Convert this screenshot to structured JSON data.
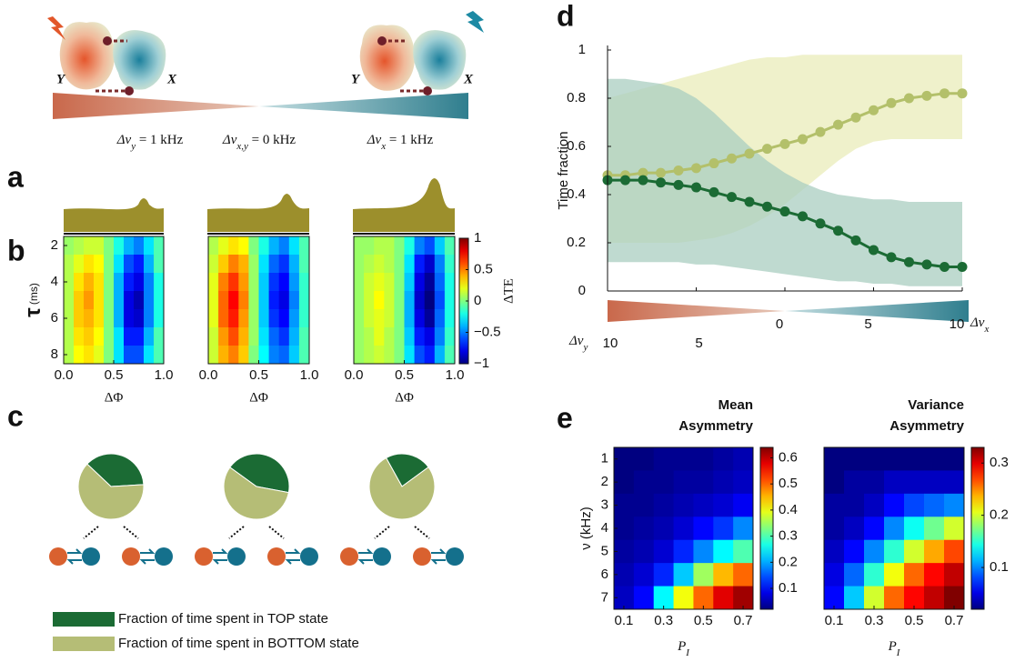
{
  "panel_labels": [
    "a",
    "b",
    "c",
    "d",
    "e"
  ],
  "schematic": {
    "y_label": "Y",
    "x_label": "X",
    "freq_labels": [
      {
        "text": "Δν",
        "sub": "y",
        "rest": " = 1 kHz"
      },
      {
        "text": "Δν",
        "sub": "x,y",
        "rest": " = 0 kHz"
      },
      {
        "text": "Δν",
        "sub": "x",
        "rest": " = 1 kHz"
      }
    ]
  },
  "legend": [
    {
      "name": "Fraction of time spent in TOP state",
      "color": "#1b6b34"
    },
    {
      "name": "Fraction of time spent in BOTTOM state",
      "color": "#b5bd76"
    }
  ],
  "chart_data": [
    {
      "type": "heatmap",
      "colormap": "jet",
      "xlabel": "ΔΦ",
      "ylabel": "τ",
      "ylabel_unit": "(ms)",
      "x": [
        0.05,
        0.15,
        0.25,
        0.35,
        0.45,
        0.55,
        0.65,
        0.75,
        0.85,
        0.95
      ],
      "y": [
        2,
        3,
        4,
        5,
        6,
        7,
        8
      ],
      "xlim": [
        0,
        1
      ],
      "ylim": [
        1.5,
        8.5
      ],
      "clim": [
        -1,
        1
      ],
      "xticks": [
        {
          "value": 0,
          "label": "0.0"
        },
        0.5,
        {
          "value": 1,
          "label": "1.0"
        }
      ],
      "yticks": [
        2,
        4,
        6,
        8
      ],
      "z": [
        [
          0.05,
          0.1,
          0.15,
          0.15,
          0.0,
          -0.2,
          -0.4,
          -0.5,
          -0.3,
          -0.1
        ],
        [
          0.1,
          0.2,
          0.3,
          0.25,
          0.0,
          -0.3,
          -0.6,
          -0.7,
          -0.4,
          -0.1
        ],
        [
          0.1,
          0.3,
          0.4,
          0.3,
          0.0,
          -0.4,
          -0.7,
          -0.8,
          -0.5,
          -0.2
        ],
        [
          0.1,
          0.35,
          0.45,
          0.3,
          0.0,
          -0.4,
          -0.8,
          -0.9,
          -0.5,
          -0.2
        ],
        [
          0.1,
          0.35,
          0.4,
          0.3,
          0.0,
          -0.4,
          -0.8,
          -0.85,
          -0.5,
          -0.2
        ],
        [
          0.1,
          0.3,
          0.35,
          0.25,
          0.0,
          -0.3,
          -0.7,
          -0.7,
          -0.4,
          -0.1
        ],
        [
          0.1,
          0.25,
          0.3,
          0.2,
          0.0,
          -0.3,
          -0.6,
          -0.6,
          -0.3,
          -0.1
        ]
      ]
    },
    {
      "type": "heatmap",
      "colormap": "jet",
      "xlabel": "ΔΦ",
      "x": [
        0.05,
        0.15,
        0.25,
        0.35,
        0.45,
        0.55,
        0.65,
        0.75,
        0.85,
        0.95
      ],
      "y": [
        2,
        3,
        4,
        5,
        6,
        7,
        8
      ],
      "xlim": [
        0,
        1
      ],
      "ylim": [
        1.5,
        8.5
      ],
      "clim": [
        -1,
        1
      ],
      "xticks": [
        {
          "value": 0,
          "label": "0.0"
        },
        0.5,
        {
          "value": 1,
          "label": "1.0"
        }
      ],
      "z": [
        [
          0.1,
          0.2,
          0.3,
          0.25,
          0.0,
          -0.2,
          -0.4,
          -0.5,
          -0.3,
          -0.1
        ],
        [
          0.15,
          0.35,
          0.5,
          0.4,
          0.05,
          -0.3,
          -0.55,
          -0.65,
          -0.4,
          -0.1
        ],
        [
          0.2,
          0.5,
          0.65,
          0.45,
          0.05,
          -0.35,
          -0.65,
          -0.75,
          -0.45,
          -0.15
        ],
        [
          0.2,
          0.55,
          0.75,
          0.5,
          0.05,
          -0.35,
          -0.7,
          -0.8,
          -0.5,
          -0.15
        ],
        [
          0.2,
          0.55,
          0.7,
          0.45,
          0.05,
          -0.35,
          -0.65,
          -0.75,
          -0.45,
          -0.15
        ],
        [
          0.15,
          0.45,
          0.6,
          0.4,
          0.05,
          -0.3,
          -0.55,
          -0.65,
          -0.4,
          -0.1
        ],
        [
          0.15,
          0.4,
          0.5,
          0.35,
          0.0,
          -0.25,
          -0.5,
          -0.55,
          -0.35,
          -0.1
        ]
      ]
    },
    {
      "type": "heatmap",
      "colormap": "jet",
      "xlabel": "ΔΦ",
      "colorbar_label": "ΔTE",
      "x": [
        0.05,
        0.15,
        0.25,
        0.35,
        0.45,
        0.55,
        0.65,
        0.75,
        0.85,
        0.95
      ],
      "y": [
        2,
        3,
        4,
        5,
        6,
        7,
        8
      ],
      "xlim": [
        0,
        1
      ],
      "ylim": [
        1.5,
        8.5
      ],
      "clim": [
        -1,
        1
      ],
      "xticks": [
        {
          "value": 0,
          "label": "0.0"
        },
        0.5,
        {
          "value": 1,
          "label": "1.0"
        }
      ],
      "cticks": [
        {
          "value": -1,
          "label": "−1"
        },
        {
          "value": -0.5,
          "label": "−0.5"
        },
        0,
        0.5,
        1
      ],
      "z": [
        [
          0.05,
          0.05,
          0.1,
          0.1,
          0.0,
          -0.2,
          -0.5,
          -0.6,
          -0.35,
          -0.1
        ],
        [
          0.05,
          0.1,
          0.15,
          0.1,
          0.0,
          -0.3,
          -0.7,
          -0.85,
          -0.5,
          -0.15
        ],
        [
          0.05,
          0.15,
          0.2,
          0.15,
          0.0,
          -0.35,
          -0.8,
          -0.95,
          -0.55,
          -0.2
        ],
        [
          0.05,
          0.15,
          0.25,
          0.15,
          0.0,
          -0.4,
          -0.85,
          -1.0,
          -0.6,
          -0.2
        ],
        [
          0.05,
          0.15,
          0.2,
          0.15,
          0.0,
          -0.4,
          -0.8,
          -0.95,
          -0.55,
          -0.2
        ],
        [
          0.05,
          0.1,
          0.2,
          0.1,
          0.0,
          -0.35,
          -0.7,
          -0.8,
          -0.5,
          -0.15
        ],
        [
          0.05,
          0.1,
          0.15,
          0.1,
          0.0,
          -0.3,
          -0.6,
          -0.7,
          -0.4,
          -0.1
        ]
      ]
    },
    {
      "type": "pie",
      "values": [
        37,
        63
      ]
    },
    {
      "type": "pie",
      "values": [
        43,
        57
      ]
    },
    {
      "type": "pie",
      "values": [
        23,
        77
      ]
    },
    {
      "type": "line",
      "ylabel": "Time fraction",
      "xlabel_left": {
        "text": "Δν",
        "sub": "y"
      },
      "xlabel_right": {
        "text": "Δν",
        "sub": "x"
      },
      "x": [
        -10,
        -9,
        -8,
        -7,
        -6,
        -5,
        -4,
        -3,
        -2,
        -1,
        0,
        1,
        2,
        3,
        4,
        5,
        6,
        7,
        8,
        9,
        10
      ],
      "xlim": [
        -10,
        10
      ],
      "ylim": [
        0,
        1
      ],
      "xticks": [
        {
          "value": -10,
          "label": "10"
        },
        {
          "value": -5,
          "label": "5"
        },
        0,
        5,
        10
      ],
      "yticks": [
        0,
        0.2,
        0.4,
        0.6,
        0.8,
        1
      ],
      "series": [
        {
          "color": "#b3c06a",
          "band_color": "#e9ecba",
          "values": [
            0.48,
            0.48,
            0.49,
            0.49,
            0.5,
            0.51,
            0.53,
            0.55,
            0.57,
            0.59,
            0.61,
            0.63,
            0.66,
            0.69,
            0.72,
            0.75,
            0.78,
            0.8,
            0.81,
            0.82,
            0.82
          ],
          "band_upper": [
            0.8,
            0.82,
            0.84,
            0.86,
            0.88,
            0.9,
            0.92,
            0.94,
            0.96,
            0.97,
            0.97,
            0.98,
            0.98,
            0.98,
            0.98,
            0.98,
            0.98,
            0.98,
            0.98,
            0.98,
            0.98
          ],
          "band_lower": [
            0.2,
            0.2,
            0.2,
            0.2,
            0.2,
            0.21,
            0.22,
            0.24,
            0.27,
            0.31,
            0.36,
            0.42,
            0.48,
            0.54,
            0.59,
            0.62,
            0.63,
            0.63,
            0.63,
            0.63,
            0.63
          ]
        },
        {
          "color": "#1b6b34",
          "band_color": "#a9cdc0",
          "values": [
            0.46,
            0.46,
            0.46,
            0.45,
            0.44,
            0.43,
            0.41,
            0.39,
            0.37,
            0.35,
            0.33,
            0.31,
            0.28,
            0.25,
            0.21,
            0.17,
            0.14,
            0.12,
            0.11,
            0.1,
            0.1
          ],
          "band_upper": [
            0.88,
            0.88,
            0.87,
            0.86,
            0.84,
            0.8,
            0.74,
            0.67,
            0.6,
            0.54,
            0.49,
            0.45,
            0.42,
            0.4,
            0.39,
            0.38,
            0.38,
            0.37,
            0.37,
            0.37,
            0.37
          ],
          "band_lower": [
            0.12,
            0.12,
            0.12,
            0.12,
            0.12,
            0.11,
            0.11,
            0.1,
            0.09,
            0.08,
            0.07,
            0.06,
            0.05,
            0.04,
            0.04,
            0.03,
            0.03,
            0.02,
            0.02,
            0.02,
            0.02
          ]
        }
      ]
    },
    {
      "type": "heatmap",
      "colormap": "jet",
      "title": [
        "Mean",
        "Asymmetry"
      ],
      "ylabel": "ν (kHz)",
      "xlabel": {
        "text": "P",
        "sub": "I"
      },
      "x": [
        0.1,
        0.2,
        0.3,
        0.4,
        0.5,
        0.6,
        0.7
      ],
      "y": [
        1,
        2,
        3,
        4,
        5,
        6,
        7
      ],
      "xlim": [
        0.05,
        0.75
      ],
      "ylim": [
        0.5,
        7.5
      ],
      "clim": [
        0.02,
        0.64
      ],
      "xticks": [
        0.1,
        0.3,
        0.5,
        0.7
      ],
      "yticks": [
        1,
        2,
        3,
        4,
        5,
        6,
        7
      ],
      "cticks": [
        0.1,
        0.2,
        0.3,
        0.4,
        0.5,
        0.6
      ],
      "z": [
        [
          0.02,
          0.02,
          0.03,
          0.03,
          0.03,
          0.04,
          0.05
        ],
        [
          0.02,
          0.03,
          0.03,
          0.04,
          0.04,
          0.05,
          0.06
        ],
        [
          0.03,
          0.03,
          0.04,
          0.05,
          0.06,
          0.07,
          0.09
        ],
        [
          0.03,
          0.04,
          0.05,
          0.07,
          0.1,
          0.13,
          0.18
        ],
        [
          0.04,
          0.05,
          0.07,
          0.12,
          0.18,
          0.25,
          0.3
        ],
        [
          0.05,
          0.07,
          0.12,
          0.22,
          0.35,
          0.45,
          0.5
        ],
        [
          0.06,
          0.1,
          0.25,
          0.4,
          0.5,
          0.58,
          0.62
        ]
      ]
    },
    {
      "type": "heatmap",
      "colormap": "jet",
      "title": [
        "Variance",
        "Asymmetry"
      ],
      "xlabel": {
        "text": "P",
        "sub": "I"
      },
      "x": [
        0.1,
        0.2,
        0.3,
        0.4,
        0.5,
        0.6,
        0.7
      ],
      "y": [
        1,
        2,
        3,
        4,
        5,
        6,
        7
      ],
      "xlim": [
        0.05,
        0.75
      ],
      "ylim": [
        0.5,
        7.5
      ],
      "clim": [
        0.02,
        0.33
      ],
      "xticks": [
        0.1,
        0.3,
        0.5,
        0.7
      ],
      "cticks": [
        0.1,
        0.2,
        0.3
      ],
      "z": [
        [
          0.02,
          0.02,
          0.02,
          0.02,
          0.02,
          0.02,
          0.02
        ],
        [
          0.02,
          0.03,
          0.03,
          0.04,
          0.04,
          0.04,
          0.04
        ],
        [
          0.03,
          0.03,
          0.04,
          0.06,
          0.08,
          0.09,
          0.1
        ],
        [
          0.03,
          0.04,
          0.06,
          0.1,
          0.14,
          0.17,
          0.2
        ],
        [
          0.04,
          0.06,
          0.1,
          0.15,
          0.2,
          0.24,
          0.27
        ],
        [
          0.05,
          0.09,
          0.15,
          0.21,
          0.26,
          0.29,
          0.31
        ],
        [
          0.06,
          0.12,
          0.2,
          0.26,
          0.29,
          0.31,
          0.33
        ]
      ]
    }
  ]
}
